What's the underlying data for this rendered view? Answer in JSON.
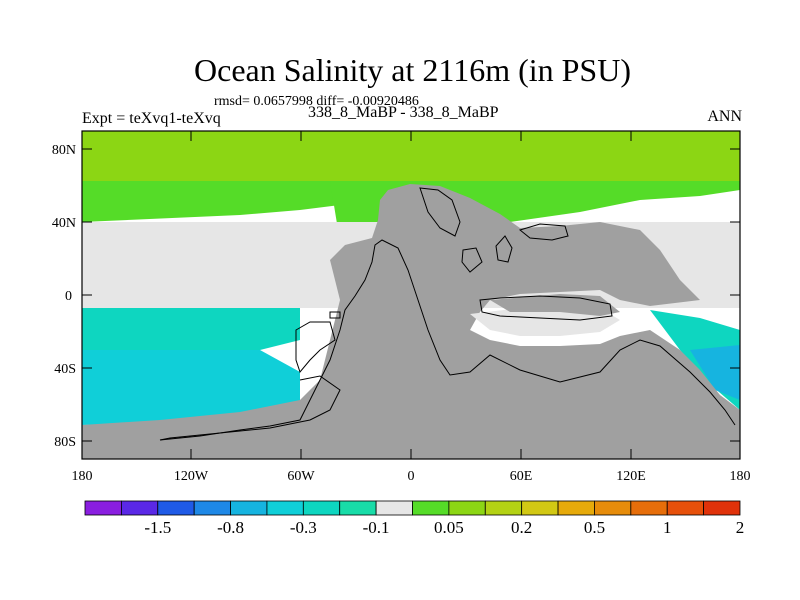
{
  "title": "Ocean Salinity at 2116m (in PSU)",
  "stats": "rmsd= 0.0657998 diff= -0.00920486",
  "case_label": "338_8_MaBP - 338_8_MaBP",
  "expt_label": "Expt = teXvq1-teXvq",
  "season": "ANN",
  "map": {
    "lat_ticks": [
      "80N",
      "40N",
      "0",
      "40S",
      "80S"
    ],
    "lon_ticks": [
      "180",
      "120W",
      "60W",
      "0",
      "60E",
      "120E",
      "180"
    ],
    "land_color": "#a0a0a0",
    "missing_color": "#e6e6e6"
  },
  "colorbar": {
    "colors": [
      "#8a1ee0",
      "#5a28e6",
      "#1f5ae6",
      "#1e88e6",
      "#16b4e0",
      "#10cfd8",
      "#0ed6c0",
      "#18dca8",
      "#e6e6e6",
      "#55dc28",
      "#8cd614",
      "#b4d214",
      "#d2c814",
      "#e6aa0a",
      "#e68c0a",
      "#e66e0a",
      "#e6500a",
      "#e0320a"
    ],
    "labels": [
      "-1.5",
      "-0.8",
      "-0.3",
      "-0.1",
      "0.05",
      "0.2",
      "0.5",
      "1",
      "2"
    ]
  }
}
